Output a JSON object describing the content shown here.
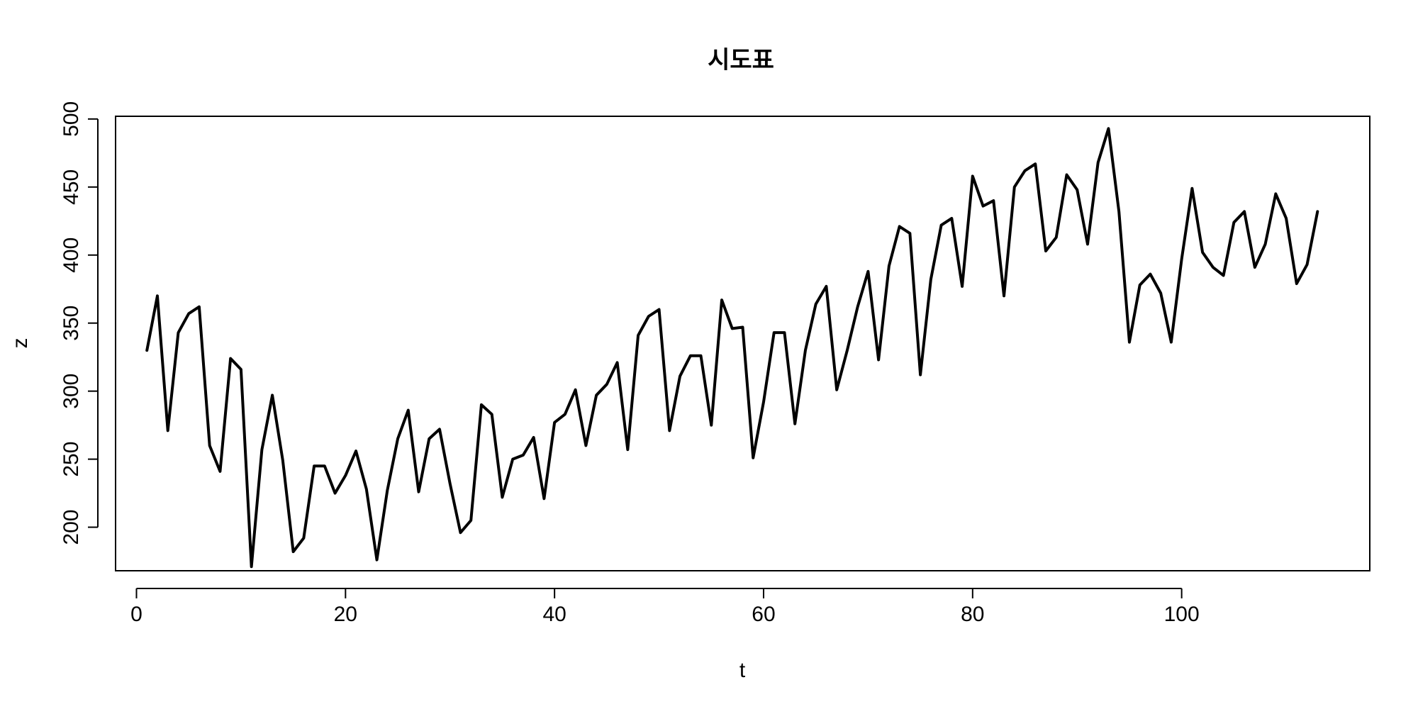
{
  "chart_data": {
    "type": "line",
    "title": "시도표",
    "xlabel": "t",
    "ylabel": "z",
    "xlim": [
      -2,
      118
    ],
    "ylim": [
      168,
      502
    ],
    "xticks": [
      0,
      20,
      40,
      60,
      80,
      100
    ],
    "yticks": [
      200,
      250,
      300,
      350,
      400,
      450,
      500
    ],
    "grid": false,
    "legend": "none",
    "line_color": "#000000",
    "series": [
      {
        "x": [
          1,
          2,
          3,
          4,
          5,
          6,
          7,
          8,
          9,
          10,
          11,
          12,
          13,
          14,
          15,
          16,
          17,
          18,
          19,
          20,
          21,
          22,
          23,
          24,
          25,
          26,
          27,
          28,
          29,
          30,
          31,
          32,
          33,
          34,
          35,
          36,
          37,
          38,
          39,
          40,
          41,
          42,
          43,
          44,
          45,
          46,
          47,
          48,
          49,
          50,
          51,
          52,
          53,
          54,
          55,
          56,
          57,
          58,
          59,
          60,
          61,
          62,
          63,
          64,
          65,
          66,
          67,
          68,
          69,
          70,
          71,
          72,
          73,
          74,
          75,
          76,
          77,
          78,
          79,
          80,
          81,
          82,
          83,
          84,
          85,
          86,
          87,
          88,
          89,
          90,
          91,
          92,
          93,
          94,
          95,
          96,
          97,
          98,
          99,
          100,
          101,
          102,
          103,
          104,
          105,
          106,
          107,
          108,
          109,
          110,
          111,
          112,
          113
        ],
        "values": [
          330,
          370,
          271,
          343,
          357,
          362,
          260,
          241,
          324,
          316,
          171,
          257,
          297,
          249,
          182,
          192,
          245,
          245,
          225,
          238,
          256,
          228,
          176,
          227,
          265,
          286,
          226,
          265,
          272,
          232,
          196,
          205,
          290,
          283,
          222,
          250,
          253,
          266,
          221,
          277,
          283,
          301,
          260,
          297,
          305,
          321,
          257,
          341,
          355,
          360,
          271,
          311,
          326,
          326,
          275,
          367,
          346,
          347,
          251,
          292,
          343,
          343,
          276,
          330,
          364,
          377,
          301,
          330,
          362,
          388,
          323,
          392,
          421,
          416,
          312,
          382,
          422,
          427,
          377,
          458,
          436,
          440,
          370,
          450,
          462,
          467,
          403,
          413,
          459,
          448,
          408,
          468,
          493,
          432,
          336,
          378,
          386,
          372,
          336,
          397,
          449,
          402,
          391,
          385,
          424,
          432,
          391,
          408,
          445,
          427,
          379,
          393,
          432
        ]
      }
    ]
  }
}
